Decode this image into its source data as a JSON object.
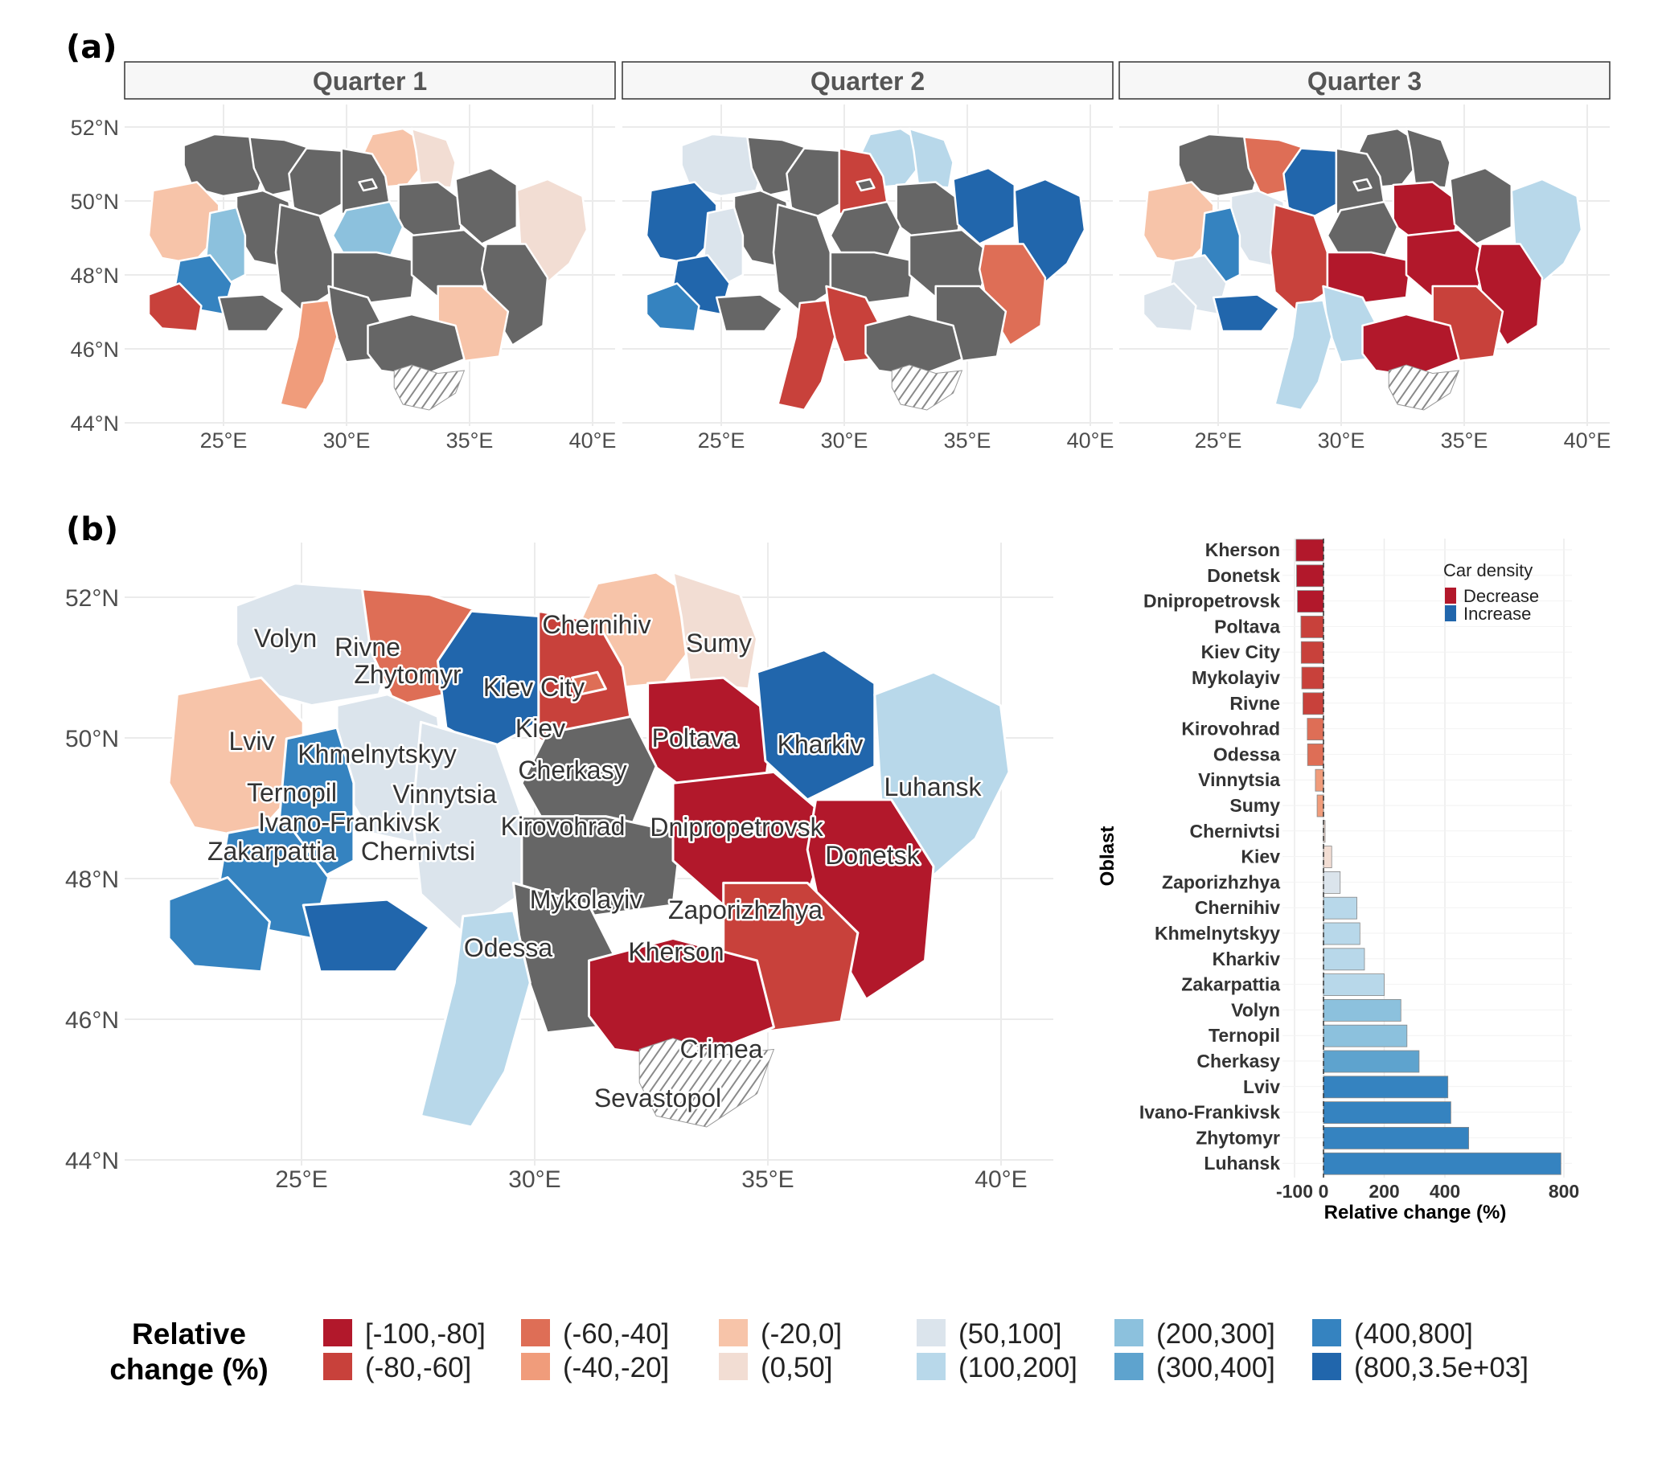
{
  "chart_data": [
    {
      "type": "choropleth",
      "panel_label": "(a)",
      "facets": [
        "Quarter 1",
        "Quarter 2",
        "Quarter 3"
      ],
      "x_ticks": [
        "25°E",
        "30°E",
        "35°E",
        "40°E"
      ],
      "y_ticks": [
        "52°N",
        "50°N",
        "48°N",
        "46°N",
        "44°N"
      ]
    },
    {
      "type": "choropleth",
      "panel_label": "(b)",
      "x_ticks": [
        "25°E",
        "30°E",
        "35°E",
        "40°E"
      ],
      "y_ticks": [
        "52°N",
        "50°N",
        "48°N",
        "46°N",
        "44°N"
      ],
      "region_labels": [
        "Volyn",
        "Rivne",
        "Zhytomyr",
        "Kiev City",
        "Chernihiv",
        "Sumy",
        "Lviv",
        "Khmelnytskyy",
        "Kiev",
        "Poltava",
        "Kharkiv",
        "Ternopil",
        "Vinnytsia",
        "Cherkasy",
        "Luhansk",
        "Ivano-Frankivsk",
        "Kirovohrad",
        "Dnipropetrovsk",
        "Zakarpattia",
        "Chernivtsi",
        "Donetsk",
        "Mykolayiv",
        "Zaporizhzhya",
        "Odessa",
        "Kherson",
        "Crimea",
        "Sevastopol"
      ]
    },
    {
      "type": "bar",
      "orientation": "horizontal",
      "categories": [
        "Kherson",
        "Donetsk",
        "Dnipropetrovsk",
        "Poltava",
        "Kiev City",
        "Mykolayiv",
        "Rivne",
        "Kirovohrad",
        "Odessa",
        "Vinnytsia",
        "Sumy",
        "Chernivtsi",
        "Kiev",
        "Zaporizhzhya",
        "Chernihiv",
        "Khmelnytskyy",
        "Kharkiv",
        "Zakarpattia",
        "Volyn",
        "Ternopil",
        "Cherkasy",
        "Lviv",
        "Ivano-Frankivsk",
        "Zhytomyr",
        "Luhansk"
      ],
      "values": [
        -95,
        -93,
        -90,
        -78,
        -77,
        -75,
        -71,
        -56,
        -55,
        -28,
        -22,
        3,
        27,
        55,
        110,
        120,
        135,
        200,
        255,
        275,
        315,
        410,
        420,
        480,
        790
      ],
      "xlabel": "Relative change (%)",
      "ylabel": "Oblast",
      "x_ticks": [
        "-100",
        "0",
        "200",
        "400",
        "800"
      ],
      "legend": {
        "title": "Car density",
        "items": [
          {
            "label": "Decrease",
            "color": "#b2182b"
          },
          {
            "label": "Increase",
            "color": "#2166ac"
          }
        ]
      }
    }
  ],
  "legend": {
    "title_line1": "Relative",
    "title_line2": "change (%)",
    "classes": [
      {
        "label": "[-100,-80]",
        "color": "#b2182b"
      },
      {
        "label": "(-80,-60]",
        "color": "#c8413b"
      },
      {
        "label": "(-60,-40]",
        "color": "#de6e56"
      },
      {
        "label": "(-40,-20]",
        "color": "#f09c7b"
      },
      {
        "label": "(-20,0]",
        "color": "#f7c4a9"
      },
      {
        "label": "(0,50]",
        "color": "#f2ddd3"
      },
      {
        "label": "(50,100]",
        "color": "#dbe4ec"
      },
      {
        "label": "(100,200]",
        "color": "#b8d8ea"
      },
      {
        "label": "(200,300]",
        "color": "#8cc1dd"
      },
      {
        "label": "(300,400]",
        "color": "#5ea3ce"
      },
      {
        "label": "(400,800]",
        "color": "#3583c0"
      },
      {
        "label": "(800,3.5e+03]",
        "color": "#2166ac"
      }
    ],
    "no_data_color": "#666666"
  }
}
